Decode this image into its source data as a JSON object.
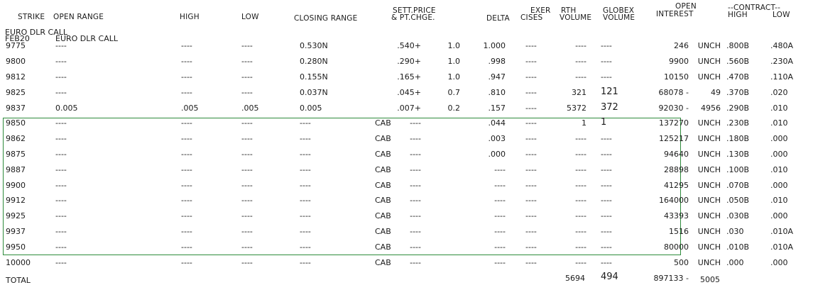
{
  "header": {
    "strike": "STRIKE",
    "open_range": "OPEN RANGE",
    "high": "HIGH",
    "low": "LOW",
    "closing_range": "CLOSING RANGE",
    "sett_price_1": "SETT.PRICE",
    "sett_price_2": "& PT.CHGE.",
    "delta": "DELTA",
    "exer_1": "EXER",
    "exer_2": "CISES",
    "rth_1": "RTH",
    "rth_2": "VOLUME",
    "globex_1": "GLOBEX",
    "globex_2": "VOLUME",
    "oi_1": "OPEN",
    "oi_2": "INTEREST",
    "contract": "--CONTRACT--",
    "c_high": "HIGH",
    "c_low": "LOW"
  },
  "section": {
    "title": "EURO DLR CALL",
    "month": "FEB20",
    "subtitle": "EURO DLR CALL"
  },
  "rows": [
    {
      "strike": "9775",
      "open": "----",
      "high": "----",
      "low": "----",
      "close": "0.530N",
      "cab": "",
      "sett": ".540+",
      "chg": "1.0",
      "delta": "1.000",
      "exer": "----",
      "rth": "----",
      "globex": "----",
      "oi": "246",
      "oichg": "UNCH",
      "chi": ".800B",
      "clo": ".480A"
    },
    {
      "strike": "9800",
      "open": "----",
      "high": "----",
      "low": "----",
      "close": "0.280N",
      "cab": "",
      "sett": ".290+",
      "chg": "1.0",
      "delta": ".998",
      "exer": "----",
      "rth": "----",
      "globex": "----",
      "oi": "9900",
      "oichg": "UNCH",
      "chi": ".560B",
      "clo": ".230A"
    },
    {
      "strike": "9812",
      "open": "----",
      "high": "----",
      "low": "----",
      "close": "0.155N",
      "cab": "",
      "sett": ".165+",
      "chg": "1.0",
      "delta": ".947",
      "exer": "----",
      "rth": "----",
      "globex": "----",
      "oi": "10150",
      "oichg": "UNCH",
      "chi": ".470B",
      "clo": ".110A"
    },
    {
      "strike": "9825",
      "open": "----",
      "high": "----",
      "low": "----",
      "close": "0.037N",
      "cab": "",
      "sett": ".045+",
      "chg": "0.7",
      "delta": ".810",
      "exer": "----",
      "rth": "321",
      "globex": "121",
      "oi": "68078 -",
      "oichg": "49",
      "chi": ".370B",
      "clo": ".020"
    },
    {
      "strike": "9837",
      "open": "0.005",
      "high": ".005",
      "low": ".005",
      "close": "0.005",
      "cab": "",
      "sett": ".007+",
      "chg": "0.2",
      "delta": ".157",
      "exer": "----",
      "rth": "5372",
      "globex": "372",
      "oi": "92030 -",
      "oichg": "4956",
      "chi": ".290B",
      "clo": ".010"
    },
    {
      "strike": "9850",
      "open": "----",
      "high": "----",
      "low": "----",
      "close": "----",
      "cab": "CAB",
      "sett": "----",
      "chg": "",
      "delta": ".044",
      "exer": "----",
      "rth": "1",
      "globex": "1",
      "oi": "137270",
      "oichg": "UNCH",
      "chi": ".230B",
      "clo": ".010"
    },
    {
      "strike": "9862",
      "open": "----",
      "high": "----",
      "low": "----",
      "close": "----",
      "cab": "CAB",
      "sett": "----",
      "chg": "",
      "delta": ".003",
      "exer": "----",
      "rth": "----",
      "globex": "----",
      "oi": "125217",
      "oichg": "UNCH",
      "chi": ".180B",
      "clo": ".000"
    },
    {
      "strike": "9875",
      "open": "----",
      "high": "----",
      "low": "----",
      "close": "----",
      "cab": "CAB",
      "sett": "----",
      "chg": "",
      "delta": ".000",
      "exer": "----",
      "rth": "----",
      "globex": "----",
      "oi": "94640",
      "oichg": "UNCH",
      "chi": ".130B",
      "clo": ".000"
    },
    {
      "strike": "9887",
      "open": "----",
      "high": "----",
      "low": "----",
      "close": "----",
      "cab": "CAB",
      "sett": "----",
      "chg": "",
      "delta": "----",
      "exer": "----",
      "rth": "----",
      "globex": "----",
      "oi": "28898",
      "oichg": "UNCH",
      "chi": ".100B",
      "clo": ".010"
    },
    {
      "strike": "9900",
      "open": "----",
      "high": "----",
      "low": "----",
      "close": "----",
      "cab": "CAB",
      "sett": "----",
      "chg": "",
      "delta": "----",
      "exer": "----",
      "rth": "----",
      "globex": "----",
      "oi": "41295",
      "oichg": "UNCH",
      "chi": ".070B",
      "clo": ".000"
    },
    {
      "strike": "9912",
      "open": "----",
      "high": "----",
      "low": "----",
      "close": "----",
      "cab": "CAB",
      "sett": "----",
      "chg": "",
      "delta": "----",
      "exer": "----",
      "rth": "----",
      "globex": "----",
      "oi": "164000",
      "oichg": "UNCH",
      "chi": ".050B",
      "clo": ".010"
    },
    {
      "strike": "9925",
      "open": "----",
      "high": "----",
      "low": "----",
      "close": "----",
      "cab": "CAB",
      "sett": "----",
      "chg": "",
      "delta": "----",
      "exer": "----",
      "rth": "----",
      "globex": "----",
      "oi": "43393",
      "oichg": "UNCH",
      "chi": ".030B",
      "clo": ".000"
    },
    {
      "strike": "9937",
      "open": "----",
      "high": "----",
      "low": "----",
      "close": "----",
      "cab": "CAB",
      "sett": "----",
      "chg": "",
      "delta": "----",
      "exer": "----",
      "rth": "----",
      "globex": "----",
      "oi": "1516",
      "oichg": "UNCH",
      "chi": ".030",
      "clo": ".010A"
    },
    {
      "strike": "9950",
      "open": "----",
      "high": "----",
      "low": "----",
      "close": "----",
      "cab": "CAB",
      "sett": "----",
      "chg": "",
      "delta": "----",
      "exer": "----",
      "rth": "----",
      "globex": "----",
      "oi": "80000",
      "oichg": "UNCH",
      "chi": ".010B",
      "clo": ".010A"
    },
    {
      "strike": "10000",
      "open": "----",
      "high": "----",
      "low": "----",
      "close": "----",
      "cab": "CAB",
      "sett": "----",
      "chg": "",
      "delta": "----",
      "exer": "----",
      "rth": "----",
      "globex": "----",
      "oi": "500",
      "oichg": "UNCH",
      "chi": ".000",
      "clo": ".000"
    }
  ],
  "total": {
    "label": "TOTAL",
    "rth": "5694",
    "globex": "494",
    "oi": "897133 -",
    "oichg": "5005"
  }
}
